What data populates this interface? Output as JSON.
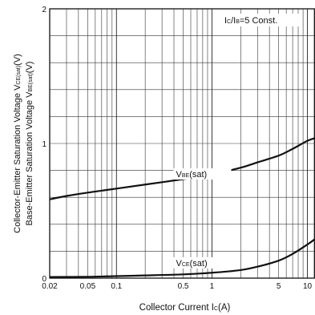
{
  "chart_data": {
    "type": "line",
    "x_scale": "log",
    "y_scale": "linear",
    "xlim": [
      0.02,
      12
    ],
    "ylim": [
      0,
      2
    ],
    "grid": true,
    "xlabel_main": "Collector Current I",
    "xlabel_sub": "C",
    "xlabel_tail": "(A)",
    "ylabel_lines": [
      {
        "main": "Collector-Emitter Saturation Voltage V",
        "sub": "CE(sat)",
        "tail": "(V)"
      },
      {
        "main": "Base-Emitter Saturation Voltage V",
        "sub": "BE(sat)",
        "tail": "(V)"
      }
    ],
    "x_ticks": [
      {
        "value": 0.02,
        "label": "0.02"
      },
      {
        "value": 0.05,
        "label": "0.05"
      },
      {
        "value": 0.1,
        "label": "0.1"
      },
      {
        "value": 0.5,
        "label": "0.5"
      },
      {
        "value": 1,
        "label": "1"
      },
      {
        "value": 5,
        "label": "5"
      },
      {
        "value": 10,
        "label": "10"
      }
    ],
    "y_ticks": [
      {
        "value": 0,
        "label": "0"
      },
      {
        "value": 1,
        "label": "1"
      },
      {
        "value": 2,
        "label": "2"
      }
    ],
    "y_gridlines": [
      0.2,
      0.4,
      0.6,
      0.8,
      1.0,
      1.2,
      1.4,
      1.6,
      1.8
    ],
    "condition": {
      "parts": [
        {
          "text": "I",
          "sub": false
        },
        {
          "text": "C",
          "sub": true
        },
        {
          "text": "/I",
          "sub": false
        },
        {
          "text": "B",
          "sub": true
        },
        {
          "text": "=5 Const.",
          "sub": false
        }
      ]
    },
    "series": [
      {
        "name_main": "V",
        "name_sub": "BE",
        "name_tail": "(sat)",
        "points": [
          [
            0.02,
            0.585
          ],
          [
            0.03,
            0.61
          ],
          [
            0.05,
            0.635
          ],
          [
            0.1,
            0.665
          ],
          [
            0.2,
            0.695
          ],
          [
            0.5,
            0.735
          ],
          [
            1,
            0.77
          ],
          [
            2,
            0.82
          ],
          [
            3,
            0.86
          ],
          [
            5,
            0.91
          ],
          [
            7,
            0.96
          ],
          [
            10,
            1.02
          ],
          [
            12,
            1.04
          ]
        ],
        "label_at": [
          0.42,
          0.75
        ]
      },
      {
        "name_main": "V",
        "name_sub": "CE",
        "name_tail": "(sat)",
        "points": [
          [
            0.02,
            0.008
          ],
          [
            0.05,
            0.01
          ],
          [
            0.1,
            0.015
          ],
          [
            0.2,
            0.02
          ],
          [
            0.5,
            0.028
          ],
          [
            1,
            0.04
          ],
          [
            2,
            0.06
          ],
          [
            3,
            0.085
          ],
          [
            5,
            0.13
          ],
          [
            7,
            0.18
          ],
          [
            10,
            0.25
          ],
          [
            12,
            0.29
          ]
        ],
        "label_at": [
          0.42,
          0.09
        ]
      }
    ]
  }
}
